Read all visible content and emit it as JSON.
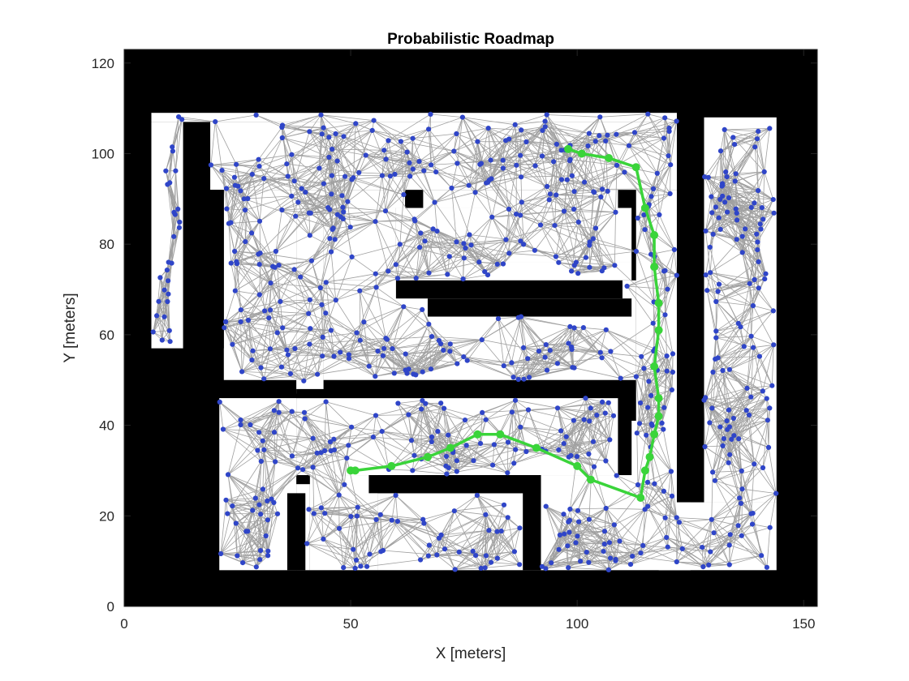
{
  "chart_data": {
    "type": "scatter",
    "title": "Probabilistic Roadmap",
    "xlabel": "X [meters]",
    "ylabel": "Y [meters]",
    "xlim": [
      0,
      153
    ],
    "ylim": [
      0,
      123
    ],
    "x_ticks": [
      0,
      50,
      100,
      150
    ],
    "y_ticks": [
      0,
      20,
      40,
      60,
      80,
      100,
      120
    ],
    "grid": false,
    "legend": "none",
    "colors": {
      "obstacle": "#000000",
      "free_space": "#ffffff",
      "node": "#2f45c8",
      "edge": "#a0a0a0",
      "path": "#3ad43a"
    },
    "map_bounds": {
      "x": [
        0,
        153
      ],
      "y": [
        0,
        123
      ]
    },
    "free_regions": [
      [
        6,
        57,
        13,
        107
      ],
      [
        6,
        107,
        125,
        109
      ],
      [
        19,
        92,
        124,
        107
      ],
      [
        22,
        50,
        38,
        92
      ],
      [
        38,
        88,
        62,
        92
      ],
      [
        66,
        88,
        109,
        92
      ],
      [
        38,
        47,
        44,
        88
      ],
      [
        44,
        72,
        60,
        88
      ],
      [
        60,
        76,
        112,
        88
      ],
      [
        44,
        50,
        113,
        72
      ],
      [
        60,
        72,
        112,
        76
      ],
      [
        113,
        41,
        125,
        92
      ],
      [
        21,
        8,
        38,
        46
      ],
      [
        38,
        29,
        110,
        46
      ],
      [
        38,
        8,
        41,
        27
      ],
      [
        41,
        8,
        56,
        29
      ],
      [
        56,
        8,
        90,
        25
      ],
      [
        90,
        8,
        125,
        29
      ],
      [
        110,
        29,
        112,
        41
      ],
      [
        112,
        25,
        125,
        41
      ],
      [
        118,
        8,
        144,
        23
      ],
      [
        128,
        23,
        144,
        108
      ]
    ],
    "blocked_regions": [
      [
        19,
        57,
        22,
        92
      ],
      [
        60,
        68,
        110,
        72
      ],
      [
        67,
        64,
        112,
        68
      ],
      [
        38,
        46,
        112,
        48
      ],
      [
        109,
        29,
        112,
        48
      ],
      [
        54,
        25,
        92,
        29
      ],
      [
        88,
        8,
        92,
        29
      ],
      [
        36,
        8,
        40,
        25
      ],
      [
        122,
        23,
        128,
        110
      ]
    ],
    "roadmap": {
      "node_count": 800,
      "connection_distance": 12,
      "description_visible": false
    },
    "path": {
      "x": [
        98,
        101,
        107,
        113,
        115,
        117,
        117,
        118,
        118,
        117,
        118,
        118,
        117,
        116,
        115,
        114,
        103,
        100,
        91,
        83,
        78,
        72,
        67,
        59,
        51,
        50
      ],
      "y": [
        101,
        100,
        99,
        97,
        88,
        82,
        75,
        67,
        61,
        53,
        46,
        42,
        38,
        33,
        30,
        24,
        28,
        31,
        35,
        38,
        38,
        35,
        33,
        31,
        30,
        30
      ]
    }
  }
}
